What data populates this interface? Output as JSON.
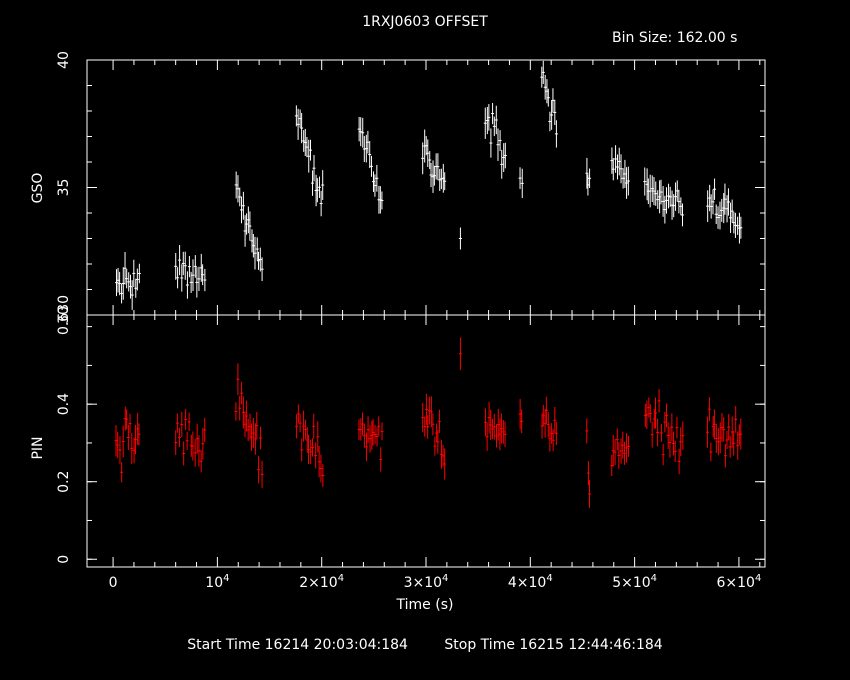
{
  "title": "1RXJ0603 OFFSET",
  "bin_size_label": "Bin Size: 162.00 s",
  "start_time": "Start Time 16214 20:03:04:184",
  "stop_time": "Stop Time 16215 12:44:46:184",
  "colors": {
    "background": "#000000",
    "axes": "#ffffff",
    "gso": "#ffffff",
    "pin": "#ff0000"
  },
  "chart_data": [
    {
      "type": "scatter",
      "ylabel": "GSO",
      "xlim": [
        -2500,
        62500
      ],
      "ylim": [
        30,
        40
      ],
      "yticks": [
        {
          "v": 30,
          "t": "30"
        },
        {
          "v": 35,
          "t": "35"
        },
        {
          "v": 40,
          "t": "40"
        }
      ],
      "color": "#ffffff",
      "segments": [
        {
          "x0": 300,
          "x1": 2500,
          "y0": 31.3,
          "y1": 31.2,
          "noise": 0.45,
          "n": 14
        },
        {
          "x0": 6000,
          "x1": 8800,
          "y0": 31.7,
          "y1": 31.4,
          "noise": 0.45,
          "n": 16
        },
        {
          "x0": 11800,
          "x1": 14300,
          "y0": 34.9,
          "y1": 31.9,
          "noise": 0.4,
          "n": 16
        },
        {
          "x0": 17600,
          "x1": 20100,
          "y0": 37.8,
          "y1": 34.5,
          "noise": 0.5,
          "n": 16
        },
        {
          "x0": 23600,
          "x1": 25800,
          "y0": 37.4,
          "y1": 34.5,
          "noise": 0.45,
          "n": 14
        },
        {
          "x0": 29700,
          "x1": 31800,
          "y0": 36.7,
          "y1": 35.0,
          "noise": 0.4,
          "n": 14
        },
        {
          "x0": 33300,
          "x1": 33300,
          "y0": 33.0,
          "y1": 33.0,
          "noise": 0.0,
          "n": 1
        },
        {
          "x0": 35700,
          "x1": 37600,
          "y0": 38.0,
          "y1": 36.0,
          "noise": 0.6,
          "n": 12
        },
        {
          "x0": 39000,
          "x1": 39200,
          "y0": 35.6,
          "y1": 35.2,
          "noise": 0.4,
          "n": 2
        },
        {
          "x0": 41100,
          "x1": 42500,
          "y0": 39.6,
          "y1": 37.0,
          "noise": 0.55,
          "n": 10
        },
        {
          "x0": 45400,
          "x1": 45700,
          "y0": 35.6,
          "y1": 35.2,
          "noise": 0.4,
          "n": 3
        },
        {
          "x0": 47800,
          "x1": 49400,
          "y0": 35.9,
          "y1": 35.1,
          "noise": 0.4,
          "n": 10
        },
        {
          "x0": 51000,
          "x1": 54600,
          "y0": 35.0,
          "y1": 34.2,
          "noise": 0.4,
          "n": 22
        },
        {
          "x0": 57000,
          "x1": 60200,
          "y0": 34.5,
          "y1": 33.5,
          "noise": 0.45,
          "n": 20
        }
      ]
    },
    {
      "type": "scatter",
      "ylabel": "PIN",
      "xlabel": "Time (s)",
      "xlim": [
        -2500,
        62500
      ],
      "ylim": [
        -0.02,
        0.63
      ],
      "yticks": [
        {
          "v": 0,
          "t": "0"
        },
        {
          "v": 0.2,
          "t": "0.2"
        },
        {
          "v": 0.4,
          "t": "0.4"
        },
        {
          "v": 0.63,
          "t": "0.630"
        }
      ],
      "xticks": [
        {
          "v": 0,
          "t": "0"
        },
        {
          "v": 10000,
          "base": "10",
          "exp": "4"
        },
        {
          "v": 20000,
          "base": "2×10",
          "exp": "4"
        },
        {
          "v": 30000,
          "base": "3×10",
          "exp": "4"
        },
        {
          "v": 40000,
          "base": "4×10",
          "exp": "4"
        },
        {
          "v": 50000,
          "base": "5×10",
          "exp": "4"
        },
        {
          "v": 60000,
          "base": "6×10",
          "exp": "4"
        }
      ],
      "color": "#ff0000",
      "segments": [
        {
          "x0": 300,
          "x1": 2500,
          "y0": 0.29,
          "y1": 0.33,
          "noise": 0.05,
          "n": 14
        },
        {
          "x0": 6000,
          "x1": 8800,
          "y0": 0.31,
          "y1": 0.32,
          "noise": 0.06,
          "n": 16
        },
        {
          "x0": 11800,
          "x1": 14300,
          "y0": 0.4,
          "y1": 0.27,
          "noise": 0.05,
          "n": 16
        },
        {
          "x0": 17600,
          "x1": 20100,
          "y0": 0.36,
          "y1": 0.24,
          "noise": 0.04,
          "n": 16
        },
        {
          "x0": 23600,
          "x1": 25800,
          "y0": 0.33,
          "y1": 0.3,
          "noise": 0.04,
          "n": 14
        },
        {
          "x0": 29700,
          "x1": 31800,
          "y0": 0.38,
          "y1": 0.28,
          "noise": 0.04,
          "n": 14
        },
        {
          "x0": 33300,
          "x1": 33300,
          "y0": 0.53,
          "y1": 0.53,
          "noise": 0.0,
          "n": 1
        },
        {
          "x0": 35700,
          "x1": 37600,
          "y0": 0.36,
          "y1": 0.3,
          "noise": 0.04,
          "n": 12
        },
        {
          "x0": 39000,
          "x1": 39200,
          "y0": 0.35,
          "y1": 0.35,
          "noise": 0.02,
          "n": 2
        },
        {
          "x0": 41100,
          "x1": 42500,
          "y0": 0.36,
          "y1": 0.32,
          "noise": 0.03,
          "n": 10
        },
        {
          "x0": 45400,
          "x1": 45700,
          "y0": 0.33,
          "y1": 0.15,
          "noise": 0.02,
          "n": 3
        },
        {
          "x0": 47800,
          "x1": 49400,
          "y0": 0.28,
          "y1": 0.29,
          "noise": 0.04,
          "n": 10
        },
        {
          "x0": 51000,
          "x1": 54600,
          "y0": 0.38,
          "y1": 0.29,
          "noise": 0.05,
          "n": 22
        },
        {
          "x0": 57000,
          "x1": 60200,
          "y0": 0.34,
          "y1": 0.31,
          "noise": 0.05,
          "n": 20
        }
      ]
    }
  ]
}
